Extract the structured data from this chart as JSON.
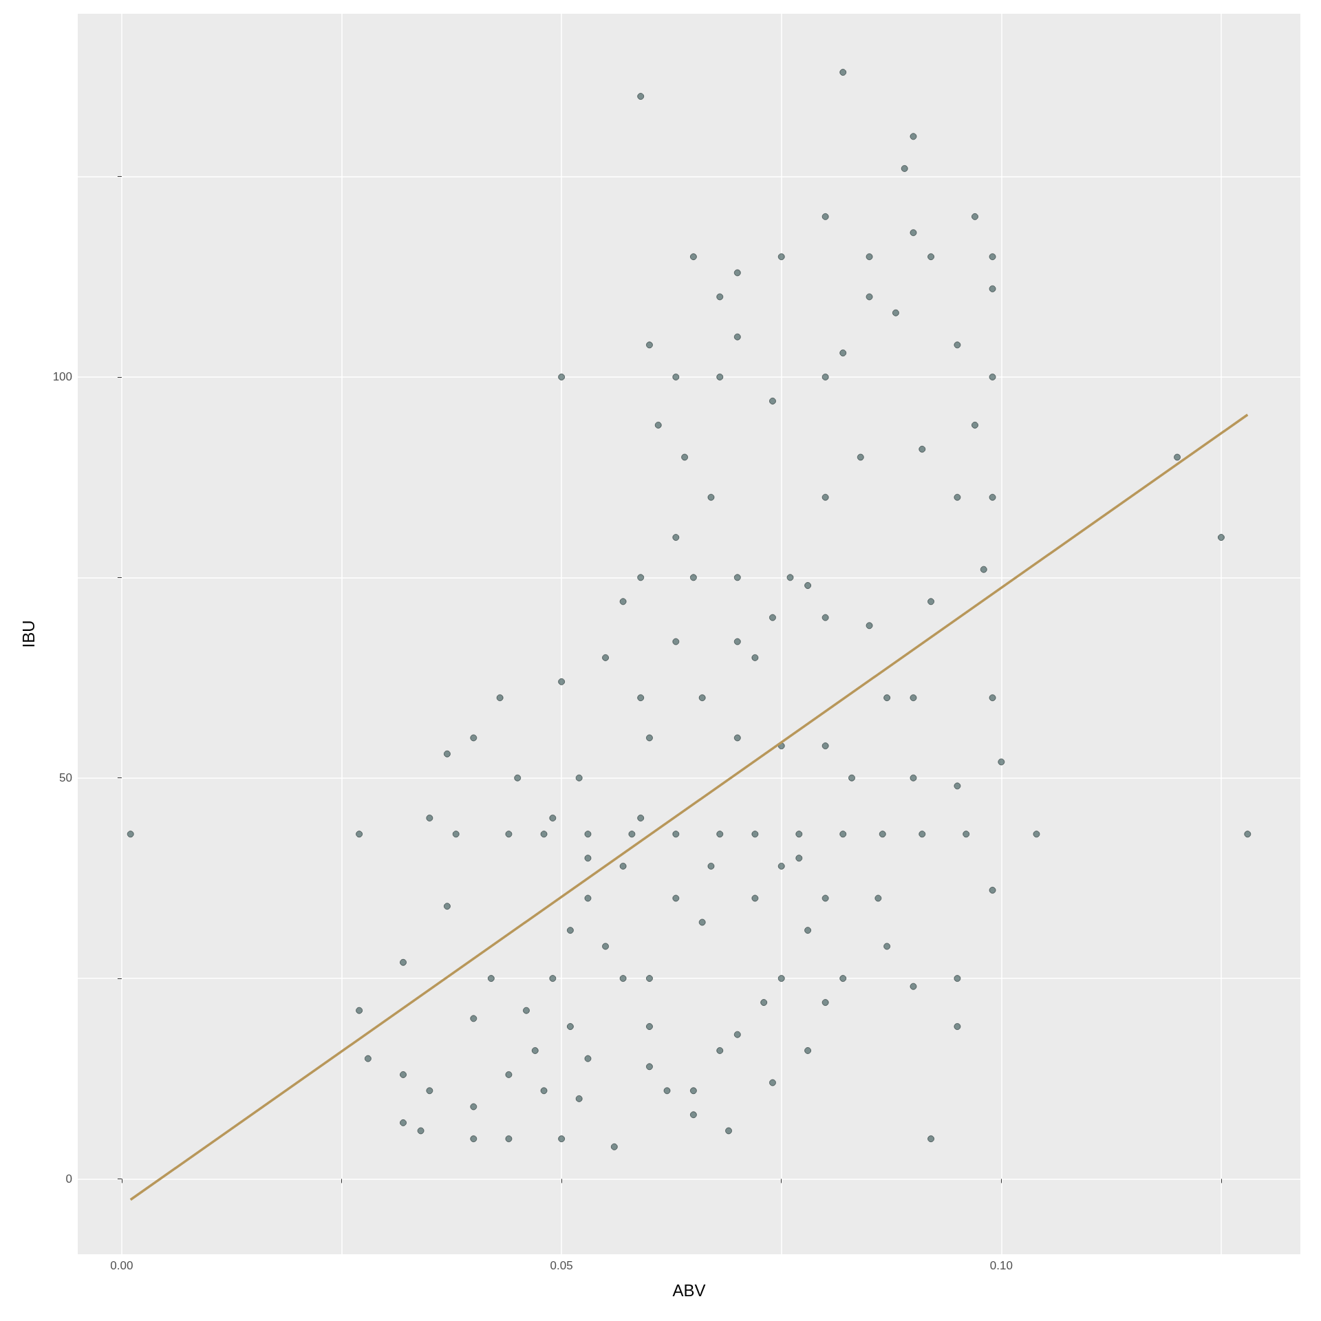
{
  "chart_data": {
    "type": "scatter",
    "xlabel": "ABV",
    "ylabel": "IBU",
    "xlim": [
      -0.005,
      0.134
    ],
    "ylim": [
      -9.4,
      145.3
    ],
    "xticks": [
      {
        "value": 0,
        "label": "0.00"
      },
      {
        "value": 0.025,
        "label": null
      },
      0.05,
      {
        "value": 0.075,
        "label": null
      },
      {
        "value": 0.1,
        "label": "0.10"
      },
      {
        "value": 0.125,
        "label": null
      }
    ],
    "yticks": [
      0,
      {
        "value": 25,
        "label": null
      },
      50,
      {
        "value": 75,
        "label": null
      },
      100,
      {
        "value": 125,
        "label": null
      }
    ],
    "grid": true,
    "series": [
      {
        "marker": "circle",
        "color": "#2f4f4f",
        "x": [
          0.001,
          0.027,
          0.027,
          0.028,
          0.032,
          0.032,
          0.032,
          0.034,
          0.035,
          0.035,
          0.037,
          0.037,
          0.04,
          0.043,
          0.04,
          0.044,
          0.05,
          0.05,
          0.05,
          0.056,
          0.059,
          0.082,
          0.09,
          0.089,
          0.08,
          0.097,
          0.09,
          0.065,
          0.075,
          0.085,
          0.092,
          0.099,
          0.07,
          0.068,
          0.085,
          0.099,
          0.088,
          0.06,
          0.07,
          0.082,
          0.095,
          0.063,
          0.068,
          0.08,
          0.099,
          0.074,
          0.061,
          0.097,
          0.064,
          0.084,
          0.091,
          0.067,
          0.08,
          0.095,
          0.099,
          0.12,
          0.125,
          0.128,
          0.104,
          0.1,
          0.099,
          0.092,
          0.09,
          0.074,
          0.069,
          0.065,
          0.065,
          0.059,
          0.063,
          0.065,
          0.07,
          0.076,
          0.078,
          0.08,
          0.085,
          0.098,
          0.092,
          0.087,
          0.09,
          0.099,
          0.083,
          0.09,
          0.095,
          0.075,
          0.08,
          0.086,
          0.08,
          0.078,
          0.075,
          0.08,
          0.082,
          0.087,
          0.095,
          0.095,
          0.078,
          0.073,
          0.068,
          0.07,
          0.062,
          0.06,
          0.038,
          0.044,
          0.048,
          0.053,
          0.058,
          0.063,
          0.068,
          0.072,
          0.077,
          0.082,
          0.0865,
          0.091,
          0.096,
          0.046,
          0.047,
          0.049,
          0.051,
          0.053,
          0.055,
          0.057,
          0.051,
          0.053,
          0.048,
          0.052,
          0.053,
          0.049,
          0.057,
          0.059,
          0.06,
          0.059,
          0.063,
          0.057,
          0.055,
          0.052,
          0.045,
          0.042,
          0.04,
          0.044,
          0.04,
          0.06,
          0.06,
          0.066,
          0.063,
          0.067,
          0.072,
          0.075,
          0.077,
          0.07,
          0.066,
          0.072,
          0.074,
          0.07
        ],
        "values": [
          43,
          43,
          21,
          15,
          27,
          13,
          7,
          6,
          11,
          45,
          53,
          34,
          55,
          60,
          5,
          5,
          100,
          62,
          5,
          4,
          135,
          138,
          130,
          126,
          120,
          120,
          118,
          115,
          115,
          115,
          115,
          115,
          113,
          110,
          110,
          111,
          108,
          104,
          105,
          103,
          104,
          100,
          100,
          100,
          100,
          97,
          94,
          94,
          90,
          90,
          91,
          85,
          85,
          85,
          85,
          90,
          80,
          43,
          43,
          52,
          36,
          5,
          24,
          12,
          6,
          8,
          11,
          75,
          80,
          75,
          75,
          75,
          74,
          70,
          69,
          76,
          72,
          60,
          60,
          60,
          50,
          50,
          49,
          54,
          54,
          35,
          35,
          31,
          25,
          22,
          25,
          29,
          25,
          19,
          16,
          22,
          16,
          18,
          11,
          14,
          43,
          43,
          43,
          43,
          43,
          43,
          43,
          43,
          43,
          43,
          43,
          43,
          43,
          21,
          16,
          25,
          31,
          35,
          29,
          25,
          19,
          15,
          11,
          10,
          40,
          45,
          39,
          45,
          55,
          60,
          67,
          72,
          65,
          50,
          50,
          25,
          20,
          13,
          9,
          25,
          19,
          32,
          35,
          39,
          35,
          39,
          40,
          55,
          60,
          65,
          70,
          67
        ]
      },
      {
        "type": "line",
        "marker": "none",
        "color": "#b8975a",
        "x": [
          0.001,
          0.128
        ],
        "values": [
          -2.6,
          95.3
        ]
      }
    ]
  }
}
